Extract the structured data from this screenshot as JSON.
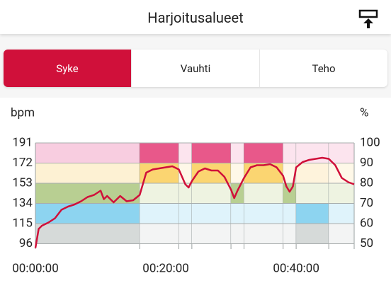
{
  "header": {
    "title": "Harjoitusalueet"
  },
  "tabs": [
    {
      "label": "Syke",
      "active": true
    },
    {
      "label": "Vauhti",
      "active": false
    },
    {
      "label": "Teho",
      "active": false
    }
  ],
  "chart_data": {
    "type": "line",
    "ylabel": "bpm",
    "y2label": "%",
    "xlim": [
      0,
      48.9
    ],
    "xticks": [
      {
        "value": 0,
        "label": "00:00:00"
      },
      {
        "value": 20,
        "label": "00:20:00"
      },
      {
        "value": 40,
        "label": "00:40:00"
      }
    ],
    "ylim": [
      91,
      191
    ],
    "yticks": [
      96,
      115,
      134,
      153,
      172,
      191
    ],
    "y2lim": [
      47.4,
      100
    ],
    "y2ticks": [
      50,
      60,
      70,
      80,
      90,
      100
    ],
    "zones": [
      {
        "start": 0,
        "end": 16,
        "fills": [
          "#f8cde0",
          "#fdf1d3",
          "#b8cf92",
          "#8dd4f0",
          "#d6dad9"
        ]
      },
      {
        "start": 16,
        "end": 22,
        "fills": [
          "#e8588a",
          "#fbd571",
          "#eef3e1",
          "#dff3fb",
          "#f3f4f4"
        ]
      },
      {
        "start": 22,
        "end": 24,
        "fills": [
          "#fce4ee",
          "#fef8e8",
          "#eef3e1",
          "#dff3fb",
          "#f3f4f4"
        ]
      },
      {
        "start": 24,
        "end": 30,
        "fills": [
          "#e8588a",
          "#fbd571",
          "#eef3e1",
          "#dff3fb",
          "#f3f4f4"
        ]
      },
      {
        "start": 30,
        "end": 32,
        "fills": [
          "#fce4ee",
          "#fef8e8",
          "#b8cf92",
          "#dff3fb",
          "#f3f4f4"
        ]
      },
      {
        "start": 32,
        "end": 38,
        "fills": [
          "#e8588a",
          "#fbd571",
          "#eef3e1",
          "#dff3fb",
          "#f3f4f4"
        ]
      },
      {
        "start": 38,
        "end": 40,
        "fills": [
          "#fce4ee",
          "#fef8e8",
          "#b8cf92",
          "#dff3fb",
          "#f3f4f4"
        ]
      },
      {
        "start": 40,
        "end": 45,
        "fills": [
          "#fce4ee",
          "#fef3dc",
          "#eef3e1",
          "#8dd4f0",
          "#d6dad9"
        ]
      },
      {
        "start": 45,
        "end": 48.9,
        "fills": [
          "#fce4ee",
          "#fef8e8",
          "#eef3e1",
          "#dff3fb",
          "#f3f4f4"
        ]
      }
    ],
    "series": [
      {
        "color": "#d0103a",
        "x": [
          0,
          0.5,
          1,
          2,
          3,
          4,
          5,
          6,
          7,
          8,
          9,
          10,
          10.5,
          11,
          12,
          13,
          14,
          15,
          16,
          17,
          18,
          19,
          20,
          21,
          22,
          23,
          23.5,
          24,
          25,
          26,
          27,
          28,
          29,
          30,
          30.5,
          31,
          32,
          33,
          34,
          35,
          36,
          37,
          38,
          38.5,
          39,
          39.5,
          40,
          41,
          42,
          43,
          44,
          45,
          46,
          47,
          48,
          48.9
        ],
        "values": [
          92,
          110,
          113,
          116,
          120,
          128,
          131,
          133,
          136,
          140,
          142,
          146,
          138,
          141,
          135,
          141,
          136,
          137,
          142,
          163,
          166,
          167,
          168,
          169,
          166,
          152,
          149,
          155,
          164,
          167,
          165,
          165,
          159,
          147,
          139,
          146,
          158,
          168,
          170,
          170,
          171,
          168,
          160,
          150,
          145,
          150,
          168,
          173,
          175,
          176,
          177,
          176,
          170,
          158,
          154,
          152
        ]
      }
    ]
  }
}
